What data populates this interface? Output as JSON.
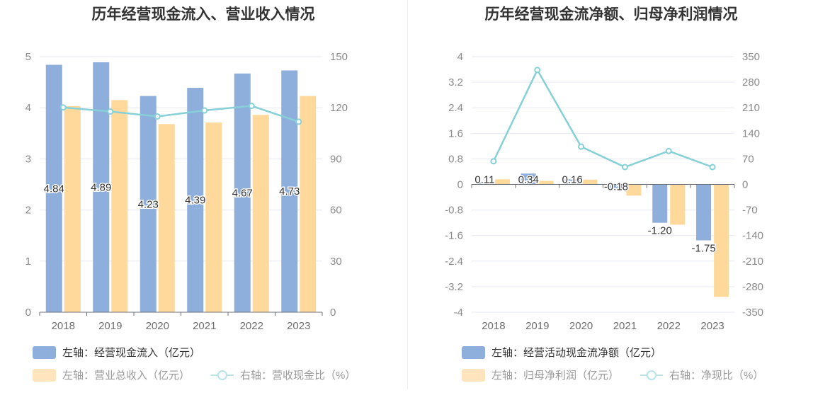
{
  "colors": {
    "bar_primary": "#8eaedc",
    "bar_secondary": "#ffd99b",
    "line": "#86d0d8",
    "legend_secondary_swatch": "#ffe4bd",
    "legend_line_swatch": "#b9e3e8"
  },
  "chart_data": [
    {
      "type": "bar",
      "title": "历年经营现金流入、营业收入情况",
      "categories": [
        "2018",
        "2019",
        "2020",
        "2021",
        "2022",
        "2023"
      ],
      "left_axis": {
        "ylim": [
          0,
          5
        ],
        "ticks": [
          "0",
          "1",
          "2",
          "3",
          "4",
          "5"
        ]
      },
      "right_axis": {
        "ylim": [
          0,
          150
        ],
        "ticks": [
          "0",
          "30",
          "60",
          "90",
          "120",
          "150"
        ]
      },
      "series": [
        {
          "name": "左轴：经营现金流入（亿元）",
          "axis": "left",
          "kind": "bar",
          "values": [
            4.84,
            4.89,
            4.23,
            4.39,
            4.67,
            4.73
          ],
          "labels": [
            "4.84",
            "4.89",
            "4.23",
            "4.39",
            "4.67",
            "4.73"
          ]
        },
        {
          "name": "左轴：营业总收入（亿元）",
          "axis": "left",
          "kind": "bar",
          "values": [
            4.03,
            4.15,
            3.68,
            3.71,
            3.86,
            4.23
          ]
        },
        {
          "name": "右轴：营收现金比（%）",
          "axis": "right",
          "kind": "line",
          "values": [
            120.2,
            117.8,
            114.9,
            118.4,
            121.1,
            111.8
          ]
        }
      ]
    },
    {
      "type": "bar",
      "title": "历年经营现金流净额、归母净利润情况",
      "categories": [
        "2018",
        "2019",
        "2020",
        "2021",
        "2022",
        "2023"
      ],
      "left_axis": {
        "ylim": [
          -4,
          4
        ],
        "ticks": [
          "-4",
          "-3.2",
          "-2.4",
          "-1.6",
          "-0.8",
          "0",
          "0.8",
          "1.6",
          "2.4",
          "3.2",
          "4"
        ]
      },
      "right_axis": {
        "ylim": [
          -350,
          350
        ],
        "ticks": [
          "-350",
          "-280",
          "-210",
          "-140",
          "-70",
          "0",
          "70",
          "140",
          "210",
          "280",
          "350"
        ]
      },
      "series": [
        {
          "name": "左轴：经营活动现金流净额（亿元）",
          "axis": "left",
          "kind": "bar",
          "values": [
            0.11,
            0.34,
            0.16,
            -0.18,
            -1.2,
            -1.75
          ],
          "labels": [
            "0.11",
            "0.34",
            "0.16",
            "-0.18",
            "-1.20",
            "-1.75"
          ]
        },
        {
          "name": "左轴：归母净利润（亿元）",
          "axis": "left",
          "kind": "bar",
          "values": [
            0.16,
            0.11,
            0.15,
            -0.35,
            -1.26,
            -3.52
          ]
        },
        {
          "name": "右轴：净现比（%）",
          "axis": "right",
          "kind": "line",
          "values": [
            63.5,
            313.5,
            103.5,
            47.5,
            91.5,
            47.5
          ]
        }
      ]
    }
  ]
}
